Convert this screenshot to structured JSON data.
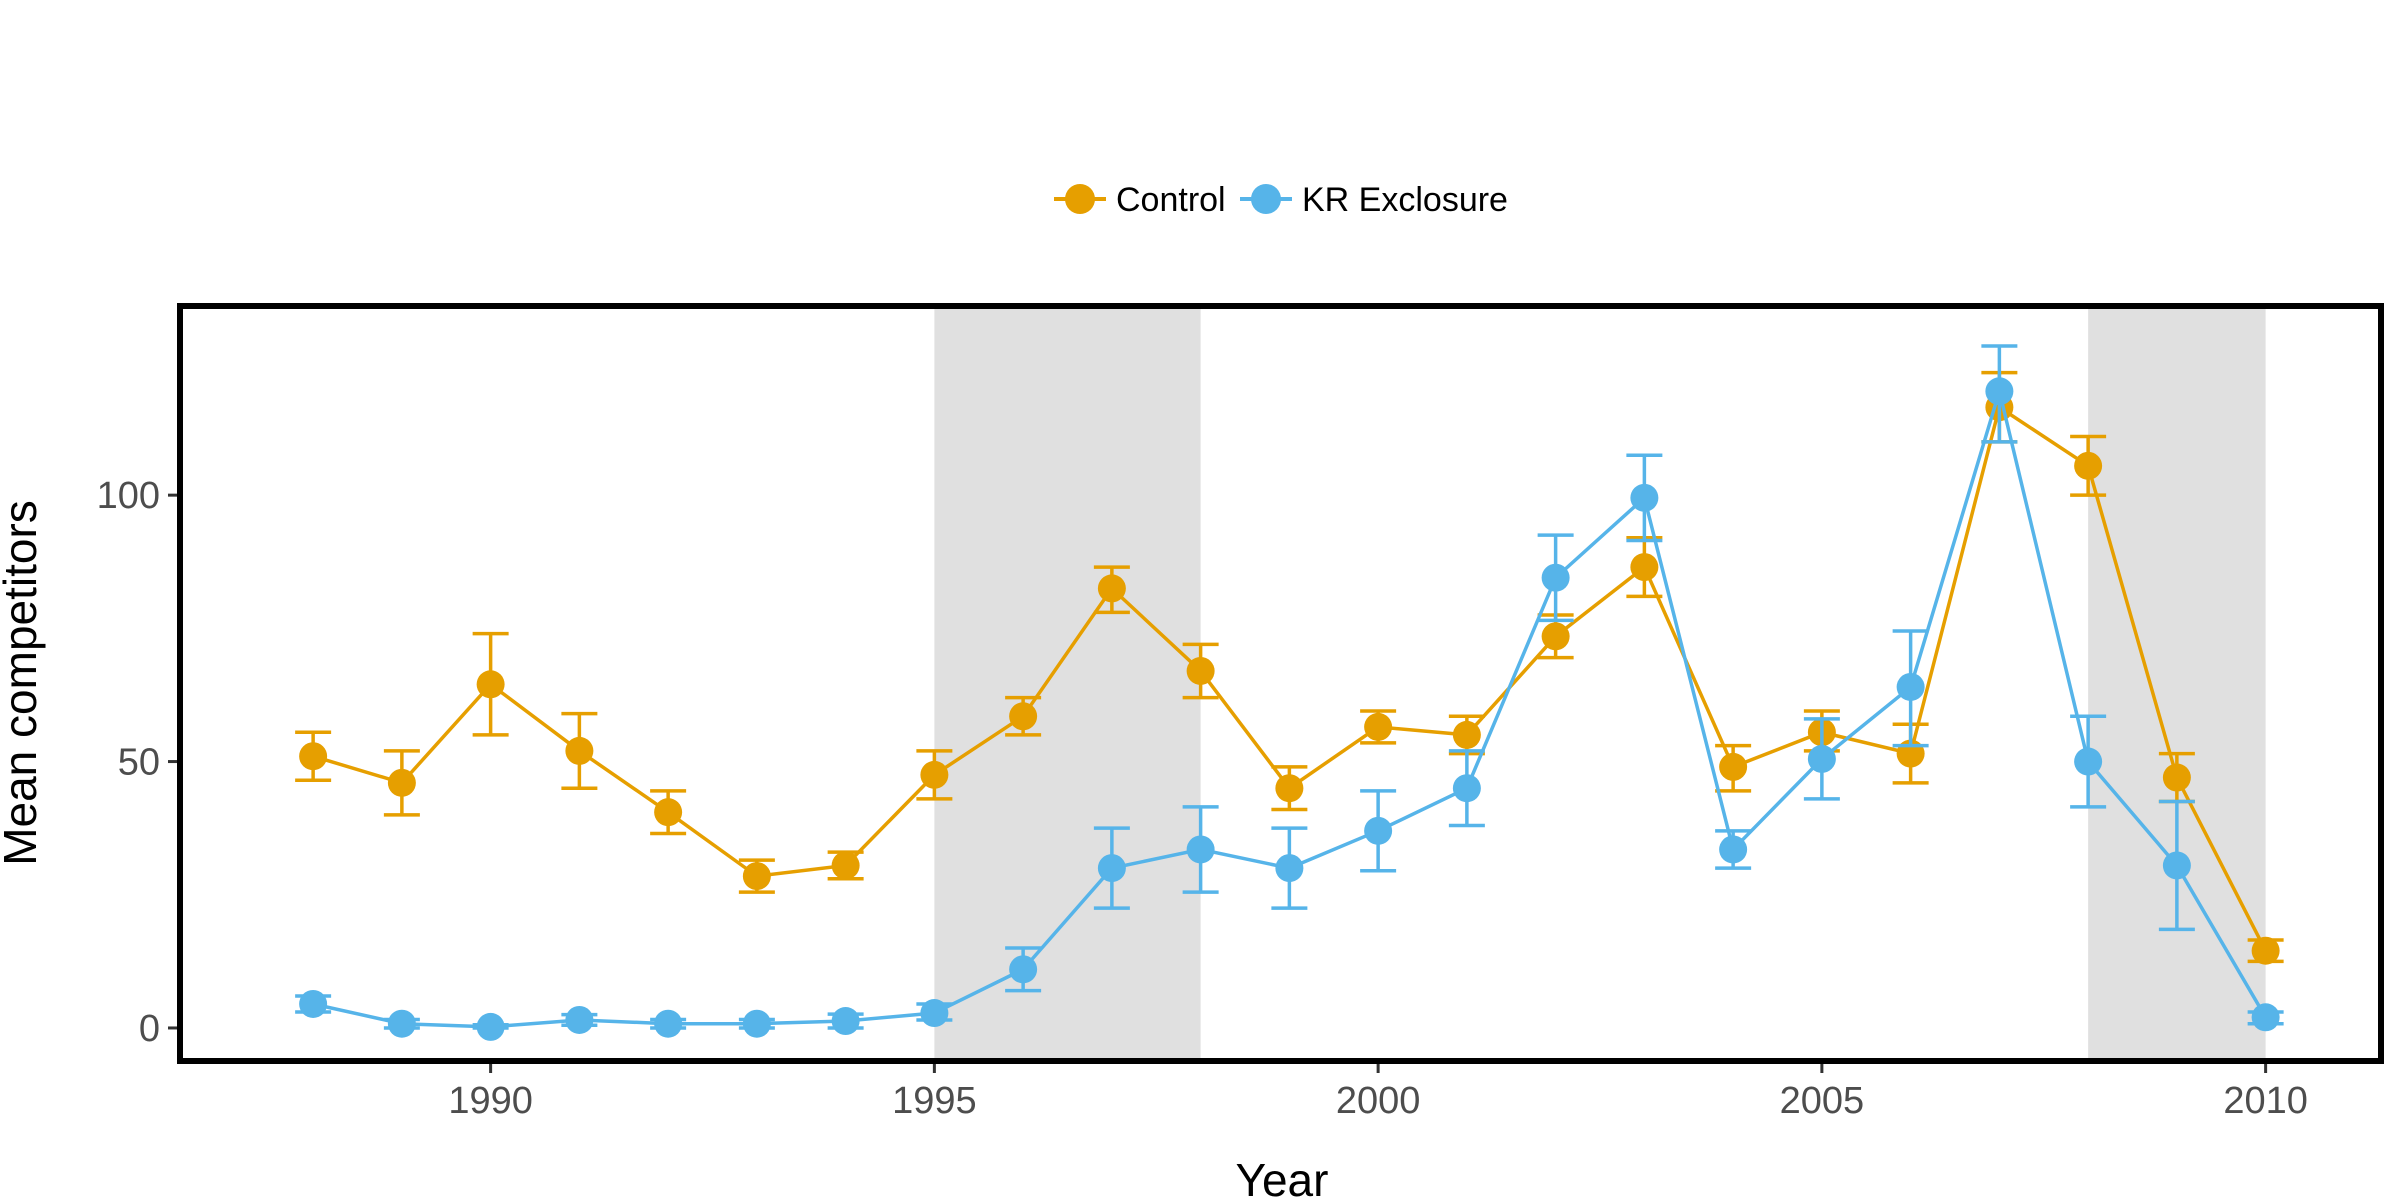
{
  "chart_data": {
    "type": "line",
    "title": "",
    "xlabel": "Year",
    "ylabel": "Mean competitors",
    "xlim": [
      1986.5,
      2011.3
    ],
    "ylim": [
      -6.2,
      135.5
    ],
    "xticks": [
      1990,
      1995,
      2000,
      2005,
      2010
    ],
    "yticks": [
      0,
      50,
      100
    ],
    "grid": false,
    "legend_position": "top-center",
    "shaded_periods": [
      [
        1995,
        1998
      ],
      [
        2008,
        2010
      ]
    ],
    "shade_color": "#e0e0e0",
    "x": [
      1988,
      1989,
      1990,
      1991,
      1992,
      1993,
      1994,
      1995,
      1996,
      1997,
      1998,
      1999,
      2000,
      2001,
      2002,
      2003,
      2004,
      2005,
      2006,
      2007,
      2008,
      2009,
      2010
    ],
    "series": [
      {
        "name": "Control",
        "color": "#E69F00",
        "values": [
          51,
          46,
          64.5,
          52,
          40.5,
          28.5,
          30.5,
          47.5,
          58.5,
          82.5,
          67,
          45,
          56.5,
          55,
          73.5,
          86.5,
          49,
          55.5,
          51.5,
          116.5,
          105.5,
          47,
          14.5
        ],
        "err_low": [
          46.5,
          40,
          55,
          45,
          36.5,
          25.5,
          28,
          43,
          55,
          78,
          62,
          41,
          53.5,
          51.5,
          69.5,
          81,
          44.5,
          52,
          46,
          110,
          100,
          42.5,
          12.5
        ],
        "err_high": [
          55.5,
          52,
          74,
          59,
          44.5,
          31.5,
          33,
          52,
          62,
          86.5,
          72,
          49,
          59.5,
          58.5,
          77.5,
          92,
          53,
          59.5,
          57,
          123,
          111,
          51.5,
          16.5
        ]
      },
      {
        "name": "KR Exclosure",
        "color": "#56B4E9",
        "values": [
          4.5,
          0.8,
          0.2,
          1.5,
          0.8,
          0.8,
          1.3,
          2.8,
          11,
          30,
          33.5,
          30,
          37,
          45,
          84.5,
          99.5,
          33.5,
          50.5,
          64,
          119.5,
          50,
          30.5,
          2
        ],
        "err_low": [
          3,
          0,
          0,
          0.5,
          0,
          0,
          0,
          1.5,
          7,
          22.5,
          25.5,
          22.5,
          29.5,
          38,
          76.5,
          91.5,
          30,
          43,
          53,
          110,
          41.5,
          18.5,
          0.8
        ],
        "err_high": [
          6,
          1.6,
          0.6,
          2.5,
          1.6,
          1.6,
          2.6,
          4.5,
          15,
          37.5,
          41.5,
          37.5,
          44.5,
          52,
          92.5,
          107.5,
          37,
          58,
          74.5,
          128,
          58.5,
          42.5,
          3
        ]
      }
    ]
  }
}
